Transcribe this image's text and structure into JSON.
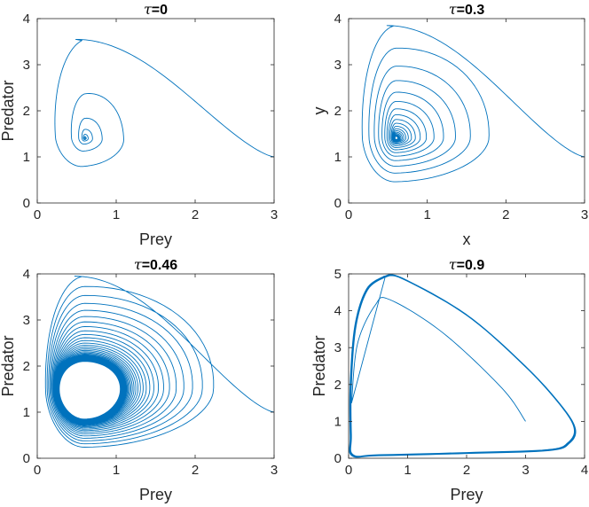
{
  "figure": {
    "line_color": "#0072BD",
    "axis_color": "#262626",
    "background": "#ffffff"
  },
  "chart_data": [
    {
      "type": "line",
      "title": "τ=0",
      "title_symbol": "τ",
      "title_value": "=0",
      "xlabel": "Prey",
      "ylabel": "Predator",
      "xlim": [
        0,
        3
      ],
      "ylim": [
        0,
        4
      ],
      "xticks": [
        0,
        1,
        2,
        3
      ],
      "yticks": [
        0,
        1,
        2,
        3,
        4
      ],
      "xtick_labels": [
        "0",
        "1",
        "2",
        "3"
      ],
      "ytick_labels": [
        "0",
        "1",
        "2",
        "3",
        "4"
      ],
      "grid": false,
      "trajectory": {
        "kind": "spiral_in",
        "start": [
          3.0,
          1.0
        ],
        "equilibrium": [
          0.6,
          1.4
        ],
        "first_orbit_extents": {
          "x_max": 1.5,
          "x_min": 0.15,
          "y_max": 3.55,
          "y_min": 0.5
        },
        "num_loops": 6,
        "decay_per_loop": 0.45,
        "final_radius_fraction": 0.0
      }
    },
    {
      "type": "line",
      "title": "τ=0.3",
      "title_symbol": "τ",
      "title_value": "=0.3",
      "xlabel": "x",
      "ylabel": "y",
      "xlim": [
        0,
        3
      ],
      "ylim": [
        0,
        4
      ],
      "xticks": [
        0,
        1,
        2,
        3
      ],
      "yticks": [
        0,
        1,
        2,
        3,
        4
      ],
      "xtick_labels": [
        "0",
        "1",
        "2",
        "3"
      ],
      "ytick_labels": [
        "0",
        "1",
        "2",
        "3",
        "4"
      ],
      "grid": false,
      "trajectory": {
        "kind": "spiral_in",
        "start": [
          3.0,
          1.0
        ],
        "equilibrium": [
          0.6,
          1.4
        ],
        "first_orbit_extents": {
          "x_max": 2.0,
          "x_min": 0.15,
          "y_max": 3.85,
          "y_min": 0.35
        },
        "num_loops": 18,
        "decay_per_loop": 0.8,
        "final_radius_fraction": 0.0
      }
    },
    {
      "type": "line",
      "title": "τ=0.46",
      "title_symbol": "τ",
      "title_value": "=0.46",
      "xlabel": "Prey",
      "ylabel": "Predator",
      "xlim": [
        0,
        3
      ],
      "ylim": [
        0,
        4
      ],
      "xticks": [
        0,
        1,
        2,
        3
      ],
      "yticks": [
        0,
        1,
        2,
        3,
        4
      ],
      "xtick_labels": [
        "0",
        "1",
        "2",
        "3"
      ],
      "ytick_labels": [
        "0",
        "1",
        "2",
        "3",
        "4"
      ],
      "grid": false,
      "trajectory": {
        "kind": "spiral_to_limit_cycle",
        "start": [
          3.0,
          1.0
        ],
        "equilibrium": [
          0.6,
          1.45
        ],
        "first_orbit_extents": {
          "x_max": 2.35,
          "x_min": 0.1,
          "y_max": 3.95,
          "y_min": 0.2
        },
        "limit_cycle_extents": {
          "x_max": 1.05,
          "x_min": 0.28,
          "y_max": 2.1,
          "y_min": 0.85
        },
        "num_loops": 60,
        "decay_per_loop": 0.88
      }
    },
    {
      "type": "line",
      "title": "τ=0.9",
      "title_symbol": "τ",
      "title_value": "=0.9",
      "xlabel": "Prey",
      "ylabel": "Predator",
      "xlim": [
        0,
        4
      ],
      "ylim": [
        0,
        5
      ],
      "xticks": [
        0,
        1,
        2,
        3,
        4
      ],
      "yticks": [
        0,
        1,
        2,
        3,
        4,
        5
      ],
      "xtick_labels": [
        "0",
        "1",
        "2",
        "3",
        "4"
      ],
      "ytick_labels": [
        "0",
        "1",
        "2",
        "3",
        "4",
        "5"
      ],
      "grid": false,
      "trajectory": {
        "kind": "spiral_out_to_limit_cycle",
        "start": [
          3.0,
          1.0
        ],
        "first_turn": [
          [
            3.0,
            1.0
          ],
          [
            2.6,
            1.9
          ],
          [
            1.6,
            3.4
          ],
          [
            0.7,
            4.3
          ],
          [
            0.45,
            4.15
          ],
          [
            0.15,
            3.1
          ],
          [
            0.05,
            1.5
          ]
        ],
        "limit_cycle_points": [
          [
            0.6,
            4.95
          ],
          [
            0.9,
            4.9
          ],
          [
            2.0,
            3.9
          ],
          [
            3.0,
            2.5
          ],
          [
            3.6,
            1.45
          ],
          [
            3.85,
            0.8
          ],
          [
            3.75,
            0.4
          ],
          [
            3.4,
            0.2
          ],
          [
            2.0,
            0.12
          ],
          [
            0.5,
            0.06
          ],
          [
            0.05,
            0.06
          ],
          [
            0.02,
            0.6
          ],
          [
            0.02,
            2.0
          ],
          [
            0.1,
            3.6
          ],
          [
            0.3,
            4.6
          ],
          [
            0.6,
            4.95
          ]
        ],
        "num_loops": 7
      }
    }
  ]
}
